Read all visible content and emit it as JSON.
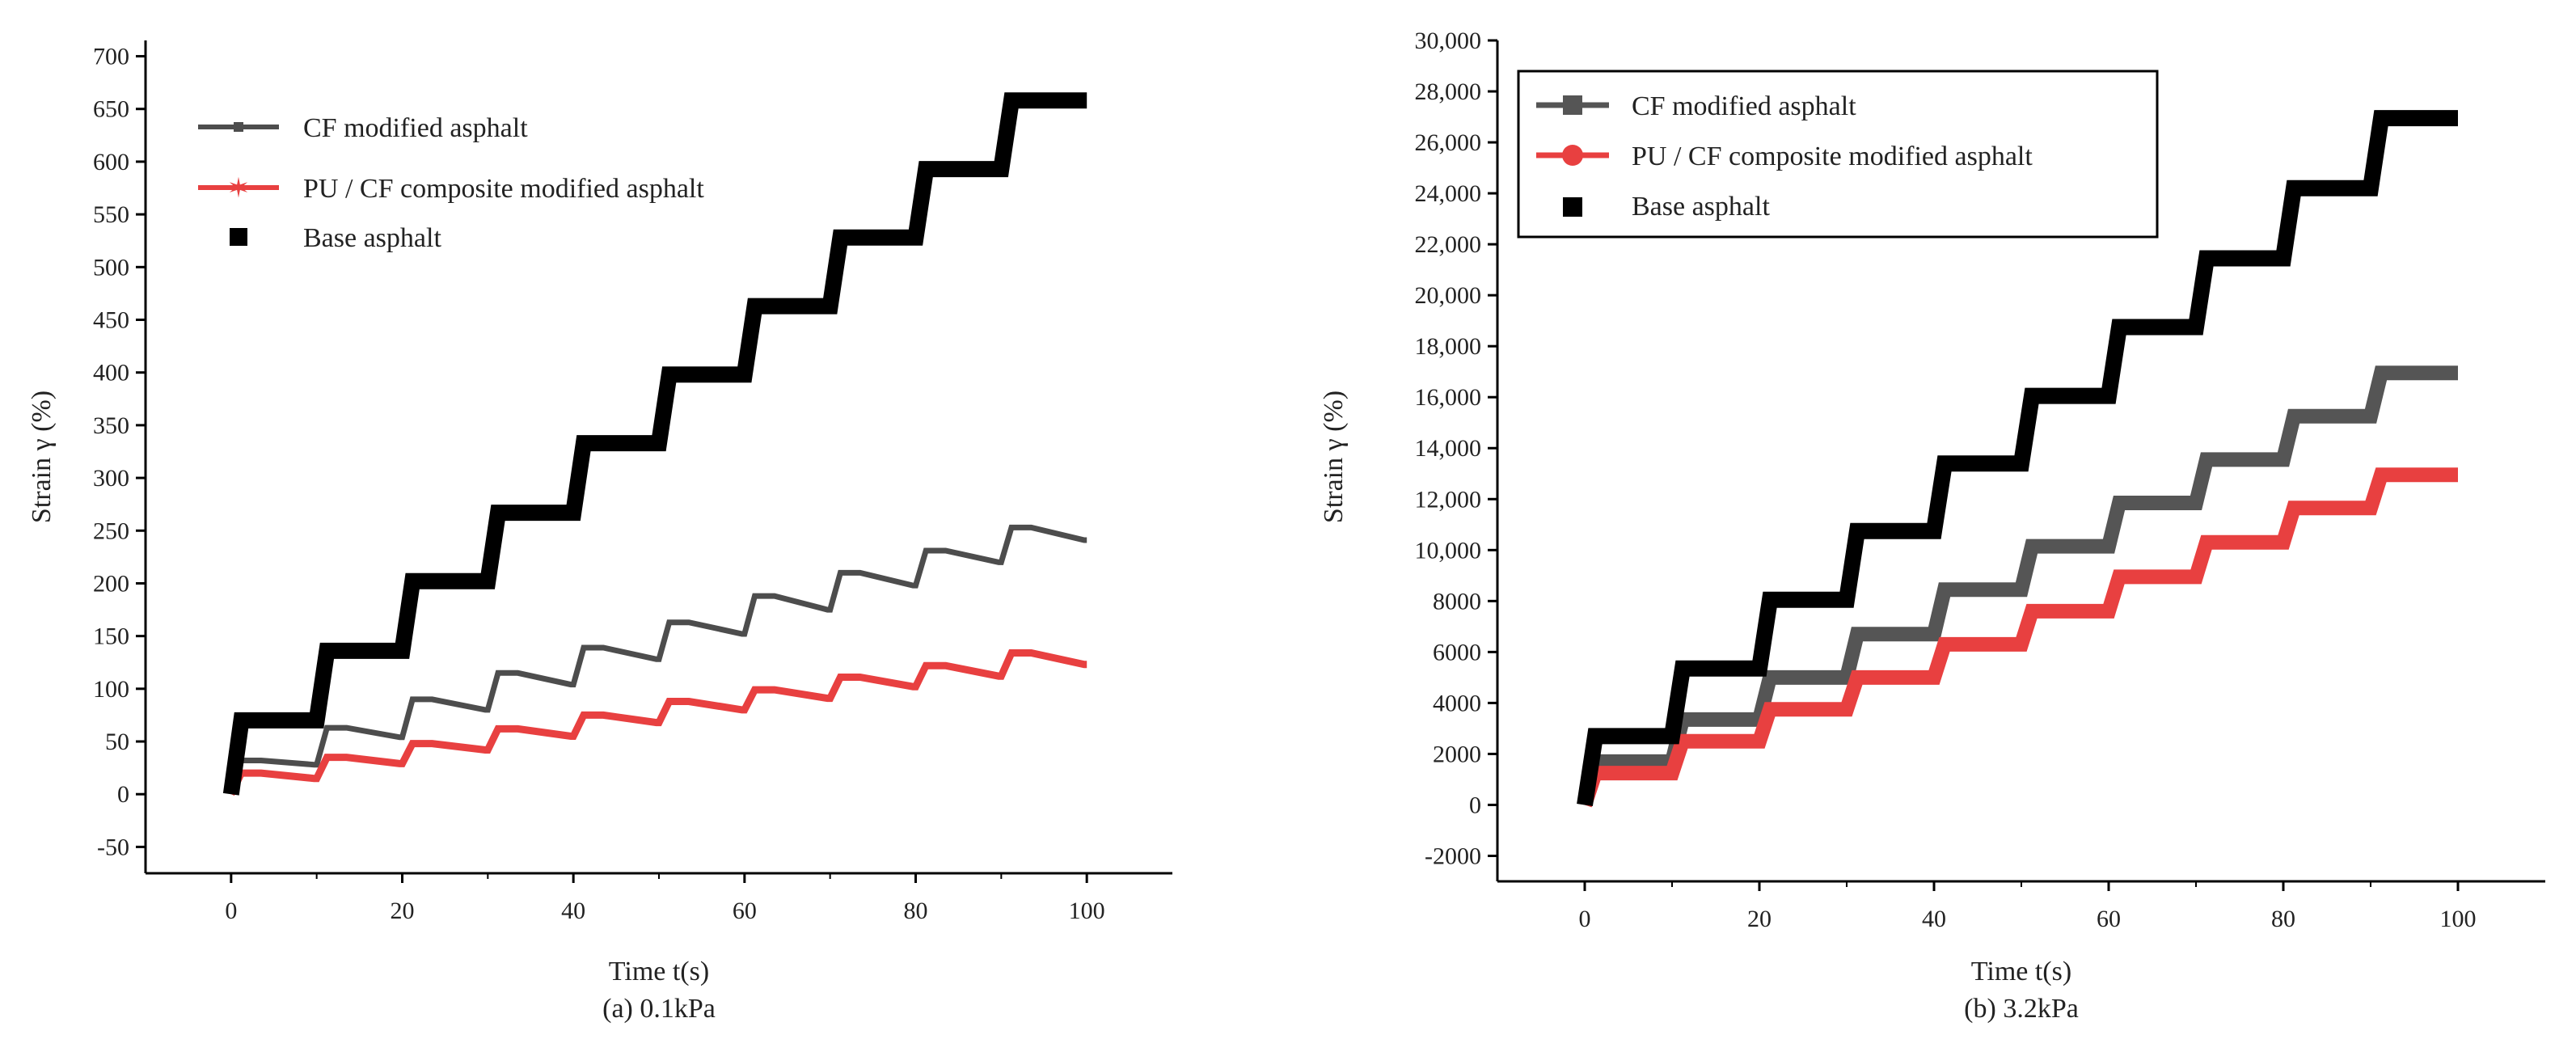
{
  "chart_data": [
    {
      "type": "line",
      "title": "",
      "caption": "(a) 0.1kPa",
      "xlabel": "Time t(s)",
      "ylabel": "Strain γ (%)",
      "xlim": [
        -10,
        110
      ],
      "ylim": [
        -75,
        715
      ],
      "xticks": [
        0,
        20,
        40,
        60,
        80,
        100
      ],
      "xtick_labels": [
        "0",
        "20",
        "40",
        "60",
        "80",
        "100"
      ],
      "yticks": [
        -50,
        0,
        50,
        100,
        150,
        200,
        250,
        300,
        350,
        400,
        450,
        500,
        550,
        600,
        650,
        700
      ],
      "ytick_labels": [
        "-50",
        "0",
        "50",
        "100",
        "150",
        "200",
        "250",
        "300",
        "350",
        "400",
        "450",
        "500",
        "550",
        "600",
        "650",
        "700"
      ],
      "legend": {
        "position": "top-left",
        "entries": [
          "CF modified asphalt",
          "PU / CF composite modified asphalt",
          "Base asphalt"
        ]
      },
      "series": [
        {
          "name": "CF modified asphalt",
          "color": "#4d4d4d",
          "width": 7,
          "marker": "square-small",
          "cycles": [
            {
              "t0": 0,
              "start": 0,
              "peak": 32,
              "end": 28
            },
            {
              "t0": 10,
              "start": 28,
              "peak": 63,
              "end": 54
            },
            {
              "t0": 20,
              "start": 54,
              "peak": 90,
              "end": 80
            },
            {
              "t0": 30,
              "start": 80,
              "peak": 115,
              "end": 104
            },
            {
              "t0": 40,
              "start": 104,
              "peak": 139,
              "end": 128
            },
            {
              "t0": 50,
              "start": 128,
              "peak": 163,
              "end": 152
            },
            {
              "t0": 60,
              "start": 152,
              "peak": 188,
              "end": 175
            },
            {
              "t0": 70,
              "start": 175,
              "peak": 210,
              "end": 198
            },
            {
              "t0": 80,
              "start": 198,
              "peak": 231,
              "end": 220
            },
            {
              "t0": 90,
              "start": 220,
              "peak": 253,
              "end": 241
            }
          ]
        },
        {
          "name": "PU / CF composite modified asphalt",
          "color": "#e84040",
          "width": 9,
          "marker": "star",
          "cycles": [
            {
              "t0": 0,
              "start": 0,
              "peak": 20,
              "end": 15
            },
            {
              "t0": 10,
              "start": 15,
              "peak": 35,
              "end": 29
            },
            {
              "t0": 20,
              "start": 29,
              "peak": 48,
              "end": 42
            },
            {
              "t0": 30,
              "start": 42,
              "peak": 62,
              "end": 55
            },
            {
              "t0": 40,
              "start": 55,
              "peak": 75,
              "end": 68
            },
            {
              "t0": 50,
              "start": 68,
              "peak": 88,
              "end": 80
            },
            {
              "t0": 60,
              "start": 80,
              "peak": 99,
              "end": 91
            },
            {
              "t0": 70,
              "start": 91,
              "peak": 111,
              "end": 102
            },
            {
              "t0": 80,
              "start": 102,
              "peak": 122,
              "end": 112
            },
            {
              "t0": 90,
              "start": 112,
              "peak": 134,
              "end": 123
            }
          ]
        },
        {
          "name": "Base asphalt",
          "color": "#000000",
          "width": 20,
          "marker": "square",
          "cycles": [
            {
              "t0": 0,
              "start": 0,
              "peak": 70,
              "end": 70
            },
            {
              "t0": 10,
              "start": 70,
              "peak": 136,
              "end": 136
            },
            {
              "t0": 20,
              "start": 136,
              "peak": 202,
              "end": 202
            },
            {
              "t0": 30,
              "start": 202,
              "peak": 267,
              "end": 267
            },
            {
              "t0": 40,
              "start": 267,
              "peak": 333,
              "end": 333
            },
            {
              "t0": 50,
              "start": 333,
              "peak": 398,
              "end": 398
            },
            {
              "t0": 60,
              "start": 398,
              "peak": 463,
              "end": 463
            },
            {
              "t0": 70,
              "start": 463,
              "peak": 528,
              "end": 528
            },
            {
              "t0": 80,
              "start": 528,
              "peak": 593,
              "end": 593
            },
            {
              "t0": 90,
              "start": 593,
              "peak": 658,
              "end": 658
            }
          ]
        }
      ]
    },
    {
      "type": "line",
      "title": "",
      "caption": "(b) 3.2kPa",
      "xlabel": "Time t(s)",
      "ylabel": "Strain γ (%)",
      "xlim": [
        -10,
        110
      ],
      "ylim": [
        -3000,
        30000
      ],
      "xticks": [
        0,
        20,
        40,
        60,
        80,
        100
      ],
      "xtick_labels": [
        "0",
        "20",
        "40",
        "60",
        "80",
        "100"
      ],
      "yticks": [
        -2000,
        0,
        2000,
        4000,
        6000,
        8000,
        10000,
        12000,
        14000,
        16000,
        18000,
        20000,
        22000,
        24000,
        26000,
        28000,
        30000
      ],
      "ytick_labels": [
        "-2000",
        "0",
        "2000",
        "4000",
        "6000",
        "8000",
        "10,000",
        "12,000",
        "14,000",
        "16,000",
        "18,000",
        "20,000",
        "22,000",
        "24,000",
        "26,000",
        "28,000",
        "30,000"
      ],
      "legend": {
        "position": "top-left",
        "entries": [
          "CF modified asphalt",
          "PU / CF composite modified asphalt",
          "Base asphalt"
        ]
      },
      "series": [
        {
          "name": "CF modified asphalt",
          "color": "#555555",
          "width": 18,
          "marker": "square",
          "cycles": [
            {
              "t0": 0,
              "start": 0,
              "peak": 1700,
              "end": 1700
            },
            {
              "t0": 10,
              "start": 1700,
              "peak": 3350,
              "end": 3350
            },
            {
              "t0": 20,
              "start": 3350,
              "peak": 5000,
              "end": 5000
            },
            {
              "t0": 30,
              "start": 5000,
              "peak": 6700,
              "end": 6700
            },
            {
              "t0": 40,
              "start": 6700,
              "peak": 8450,
              "end": 8450
            },
            {
              "t0": 50,
              "start": 8450,
              "peak": 10150,
              "end": 10150
            },
            {
              "t0": 60,
              "start": 10150,
              "peak": 11850,
              "end": 11850
            },
            {
              "t0": 70,
              "start": 11850,
              "peak": 13550,
              "end": 13550
            },
            {
              "t0": 80,
              "start": 13550,
              "peak": 15250,
              "end": 15250
            },
            {
              "t0": 90,
              "start": 15250,
              "peak": 16950,
              "end": 16950
            }
          ]
        },
        {
          "name": "PU / CF composite modified asphalt",
          "color": "#e84040",
          "width": 18,
          "marker": "circle",
          "cycles": [
            {
              "t0": 0,
              "start": 0,
              "peak": 1250,
              "end": 1250
            },
            {
              "t0": 10,
              "start": 1250,
              "peak": 2500,
              "end": 2500
            },
            {
              "t0": 20,
              "start": 2500,
              "peak": 3750,
              "end": 3750
            },
            {
              "t0": 30,
              "start": 3750,
              "peak": 5000,
              "end": 5000
            },
            {
              "t0": 40,
              "start": 5000,
              "peak": 6300,
              "end": 6300
            },
            {
              "t0": 50,
              "start": 6300,
              "peak": 7600,
              "end": 7600
            },
            {
              "t0": 60,
              "start": 7600,
              "peak": 8950,
              "end": 8950
            },
            {
              "t0": 70,
              "start": 8950,
              "peak": 10300,
              "end": 10300
            },
            {
              "t0": 80,
              "start": 10300,
              "peak": 11650,
              "end": 11650
            },
            {
              "t0": 90,
              "start": 11650,
              "peak": 12950,
              "end": 12950
            }
          ]
        },
        {
          "name": "Base asphalt",
          "color": "#000000",
          "width": 20,
          "marker": "square",
          "cycles": [
            {
              "t0": 0,
              "start": 0,
              "peak": 2700,
              "end": 2700
            },
            {
              "t0": 10,
              "start": 2700,
              "peak": 5350,
              "end": 5350
            },
            {
              "t0": 20,
              "start": 5350,
              "peak": 8050,
              "end": 8050
            },
            {
              "t0": 30,
              "start": 8050,
              "peak": 10750,
              "end": 10750
            },
            {
              "t0": 40,
              "start": 10750,
              "peak": 13400,
              "end": 13400
            },
            {
              "t0": 50,
              "start": 13400,
              "peak": 16050,
              "end": 16050
            },
            {
              "t0": 60,
              "start": 16050,
              "peak": 18750,
              "end": 18750
            },
            {
              "t0": 70,
              "start": 18750,
              "peak": 21450,
              "end": 21450
            },
            {
              "t0": 80,
              "start": 21450,
              "peak": 24200,
              "end": 24200
            },
            {
              "t0": 90,
              "start": 24200,
              "peak": 26950,
              "end": 26950
            }
          ]
        }
      ]
    }
  ]
}
